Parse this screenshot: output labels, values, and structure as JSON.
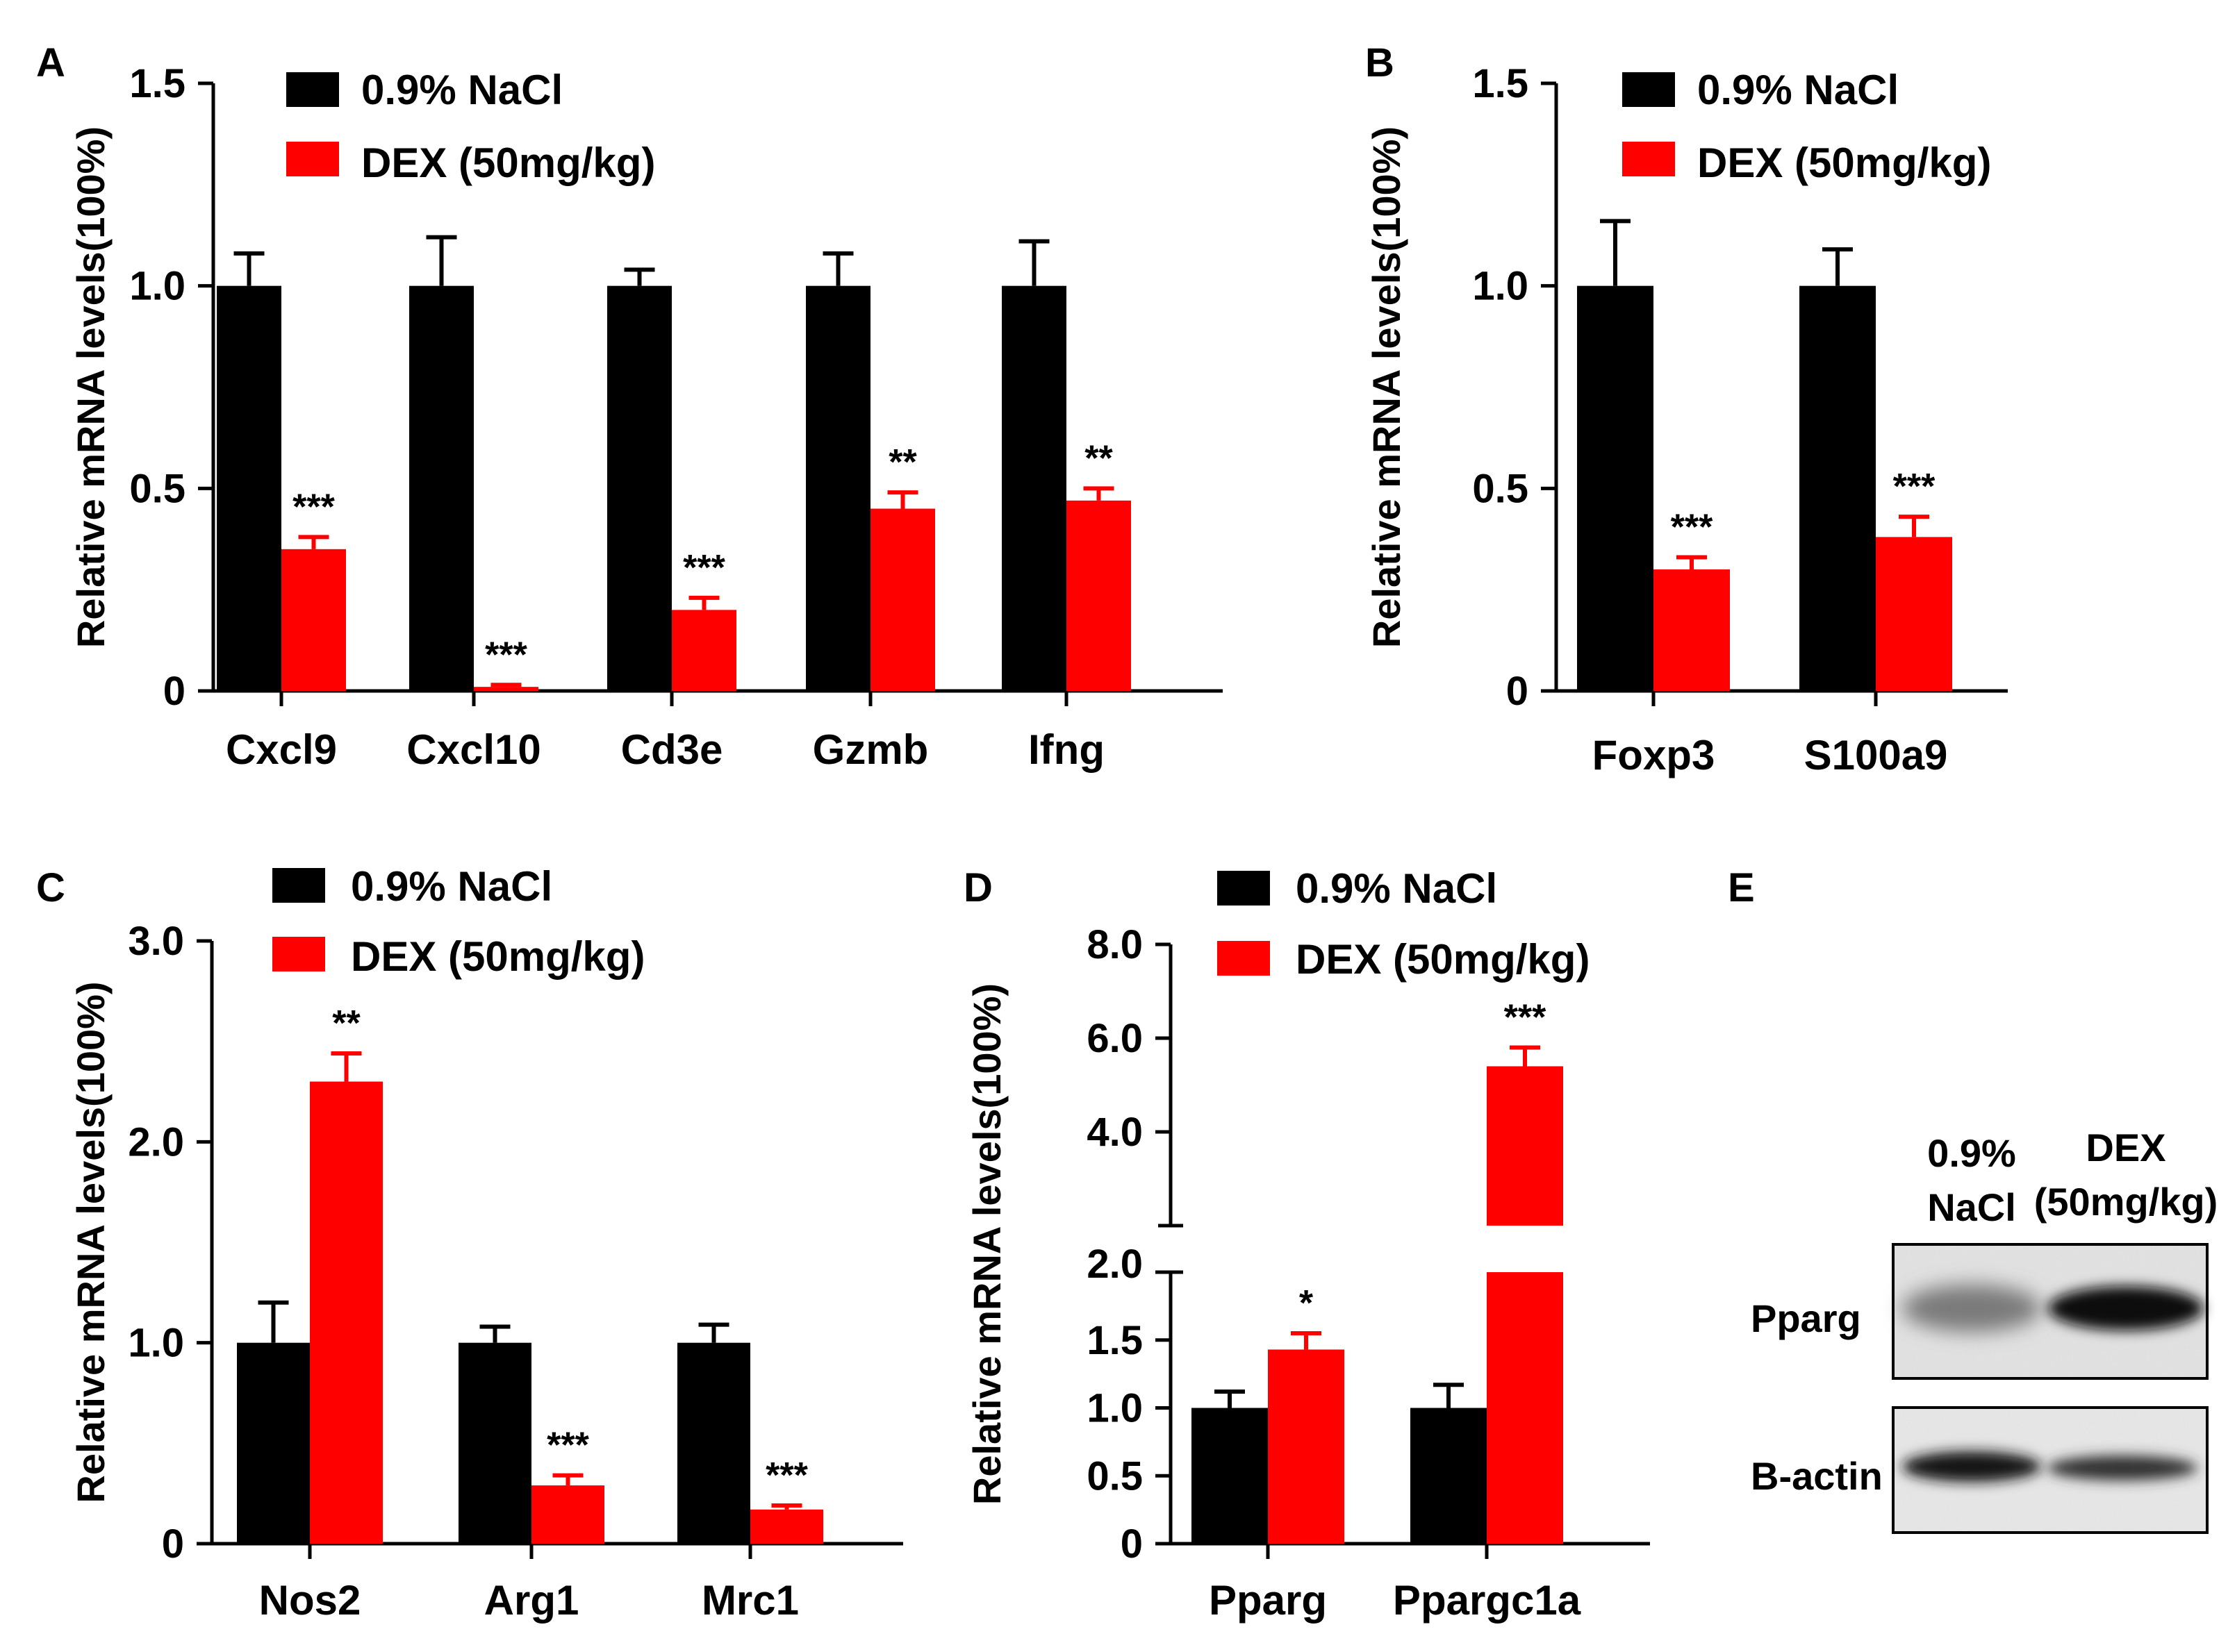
{
  "colors": {
    "control": "#000000",
    "treated": "#ff0000"
  },
  "legend": {
    "control": "0.9% NaCl",
    "treated": "DEX (50mg/kg)"
  },
  "chart_data": [
    {
      "panel": "A",
      "type": "bar",
      "ylabel": "Relative mRNA levels(100%)",
      "ylim": [
        0,
        1.5
      ],
      "yticks": [
        {
          "value": 0,
          "label": "0"
        },
        {
          "value": 0.5,
          "label": "0.5"
        },
        {
          "value": 1.0,
          "label": "1.0"
        },
        {
          "value": 1.5,
          "label": "1.5"
        }
      ],
      "categories": [
        "Cxcl9",
        "Cxcl10",
        "Cd3e",
        "Gzmb",
        "Ifng"
      ],
      "series": [
        {
          "name": "0.9% NaCl",
          "values": [
            1.0,
            1.0,
            1.0,
            1.0,
            1.0
          ],
          "errors": [
            0.08,
            0.12,
            0.04,
            0.08,
            0.11
          ]
        },
        {
          "name": "DEX (50mg/kg)",
          "values": [
            0.35,
            0.01,
            0.2,
            0.45,
            0.47
          ],
          "errors": [
            0.03,
            0.005,
            0.03,
            0.04,
            0.03
          ],
          "significance": [
            "***",
            "***",
            "***",
            "**",
            "**"
          ]
        }
      ]
    },
    {
      "panel": "B",
      "type": "bar",
      "ylabel": "Relative mRNA levels(100%)",
      "ylim": [
        0,
        1.5
      ],
      "yticks": [
        {
          "value": 0,
          "label": "0"
        },
        {
          "value": 0.5,
          "label": "0.5"
        },
        {
          "value": 1.0,
          "label": "1.0"
        },
        {
          "value": 1.5,
          "label": "1.5"
        }
      ],
      "categories": [
        "Foxp3",
        "S100a9"
      ],
      "series": [
        {
          "name": "0.9% NaCl",
          "values": [
            1.0,
            1.0
          ],
          "errors": [
            0.16,
            0.09
          ]
        },
        {
          "name": "DEX (50mg/kg)",
          "values": [
            0.3,
            0.38
          ],
          "errors": [
            0.03,
            0.05
          ],
          "significance": [
            "***",
            "***"
          ]
        }
      ]
    },
    {
      "panel": "C",
      "type": "bar",
      "ylabel": "Relative mRNA levels(100%)",
      "ylim": [
        0,
        3.0
      ],
      "yticks": [
        {
          "value": 0,
          "label": "0"
        },
        {
          "value": 1.0,
          "label": "1.0"
        },
        {
          "value": 2.0,
          "label": "2.0"
        },
        {
          "value": 3.0,
          "label": "3.0"
        }
      ],
      "categories": [
        "Nos2",
        "Arg1",
        "Mrc1"
      ],
      "series": [
        {
          "name": "0.9% NaCl",
          "values": [
            1.0,
            1.0,
            1.0
          ],
          "errors": [
            0.2,
            0.08,
            0.09
          ]
        },
        {
          "name": "DEX (50mg/kg)",
          "values": [
            2.3,
            0.29,
            0.17
          ],
          "errors": [
            0.14,
            0.05,
            0.02
          ],
          "significance": [
            "**",
            "***",
            "***"
          ]
        }
      ]
    },
    {
      "panel": "D",
      "type": "bar",
      "ylabel": "Relative mRNA levels(100%)",
      "axis_break": [
        2.0,
        2.0
      ],
      "ylim": [
        0,
        8.0
      ],
      "yticks": [
        {
          "value": 0,
          "label": "0"
        },
        {
          "value": 0.5,
          "label": "0.5"
        },
        {
          "value": 1.0,
          "label": "1.0"
        },
        {
          "value": 1.5,
          "label": "1.5"
        },
        {
          "value": 2.0,
          "label": "2.0"
        },
        {
          "value": 4.0,
          "label": "4.0"
        },
        {
          "value": 6.0,
          "label": "6.0"
        },
        {
          "value": 8.0,
          "label": "8.0"
        }
      ],
      "categories": [
        "Pparg",
        "Ppargc1a"
      ],
      "series": [
        {
          "name": "0.9% NaCl",
          "values": [
            1.0,
            1.0
          ],
          "errors": [
            0.12,
            0.17
          ]
        },
        {
          "name": "DEX (50mg/kg)",
          "values": [
            1.43,
            5.4
          ],
          "errors": [
            0.12,
            0.4
          ],
          "significance": [
            "*",
            "***"
          ]
        }
      ]
    }
  ],
  "blot": {
    "panel": "E",
    "columns": [
      {
        "line1": "0.9%",
        "line2": "NaCl"
      },
      {
        "line1": "DEX",
        "line2": "(50mg/kg)"
      }
    ],
    "rows": [
      "Pparg",
      "B-actin"
    ]
  }
}
